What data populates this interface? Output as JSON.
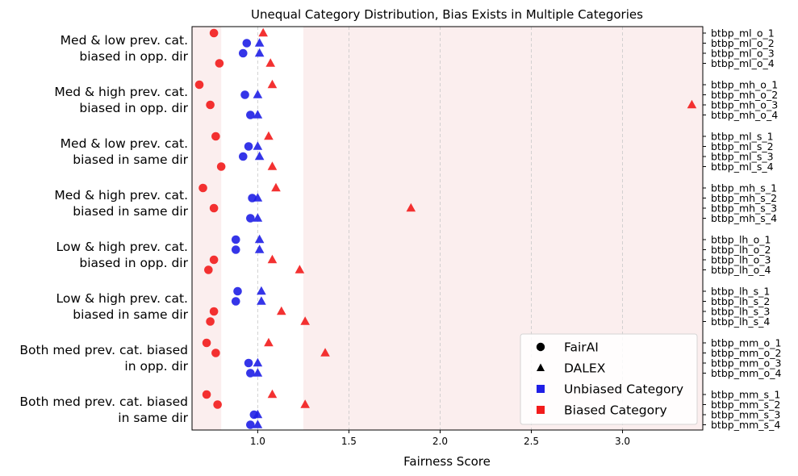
{
  "chart_data": {
    "type": "scatter",
    "title": "Unequal Category Distribution, Bias Exists in Multiple Categories",
    "xlabel": "Fairness Score",
    "xlim": [
      0.64,
      3.44
    ],
    "xticks": [
      "1.0",
      "1.5",
      "2.0",
      "2.5",
      "3.0"
    ],
    "xtick_values": [
      1.0,
      1.5,
      2.0,
      2.5,
      3.0
    ],
    "grid": "vertical dashed at x ticks",
    "shaded_regions": [
      {
        "from": 0.64,
        "to": 0.8,
        "color": "#fbeeee"
      },
      {
        "from": 1.25,
        "to": 3.44,
        "color": "#fbeeee"
      }
    ],
    "colors": {
      "unbiased": "#1f1fe6",
      "biased": "#f21b1b"
    },
    "groups": [
      {
        "label": [
          "Med & low prev. cat.",
          "biased in opp. dir"
        ],
        "categories": [
          "btbp_ml_o_1",
          "btbp_ml_o_2",
          "btbp_ml_o_3",
          "btbp_ml_o_4"
        ],
        "fairai": [
          0.76,
          0.94,
          0.92,
          0.79
        ],
        "dalex": [
          1.03,
          1.01,
          1.01,
          1.07
        ],
        "biased": [
          true,
          false,
          false,
          true
        ]
      },
      {
        "label": [
          "Med & high prev. cat.",
          "biased in opp. dir"
        ],
        "categories": [
          "btbp_mh_o_1",
          "btbp_mh_o_2",
          "btbp_mh_o_3",
          "btbp_mh_o_4"
        ],
        "fairai": [
          0.68,
          0.93,
          0.74,
          0.96
        ],
        "dalex": [
          1.08,
          1.0,
          3.38,
          1.0
        ],
        "biased": [
          true,
          false,
          true,
          false
        ]
      },
      {
        "label": [
          "Med & low prev. cat.",
          "biased in same dir"
        ],
        "categories": [
          "btbp_ml_s_1",
          "btbp_ml_s_2",
          "btbp_ml_s_3",
          "btbp_ml_s_4"
        ],
        "fairai": [
          0.77,
          0.95,
          0.92,
          0.8
        ],
        "dalex": [
          1.06,
          1.0,
          1.01,
          1.08
        ],
        "biased": [
          true,
          false,
          false,
          true
        ]
      },
      {
        "label": [
          "Med & high prev. cat.",
          "biased in same dir"
        ],
        "categories": [
          "btbp_mh_s_1",
          "btbp_mh_s_2",
          "btbp_mh_s_3",
          "btbp_mh_s_4"
        ],
        "fairai": [
          0.7,
          0.97,
          0.76,
          0.96
        ],
        "dalex": [
          1.1,
          1.0,
          1.84,
          1.0
        ],
        "biased": [
          true,
          false,
          true,
          false
        ]
      },
      {
        "label": [
          "Low & high prev. cat.",
          "biased in opp. dir"
        ],
        "categories": [
          "btbp_lh_o_1",
          "btbp_lh_o_2",
          "btbp_lh_o_3",
          "btbp_lh_o_4"
        ],
        "fairai": [
          0.88,
          0.88,
          0.76,
          0.73
        ],
        "dalex": [
          1.01,
          1.01,
          1.08,
          1.23
        ],
        "biased": [
          false,
          false,
          true,
          true
        ]
      },
      {
        "label": [
          "Low & high prev. cat.",
          "biased in same dir"
        ],
        "categories": [
          "btbp_lh_s_1",
          "btbp_lh_s_2",
          "btbp_lh_s_3",
          "btbp_lh_s_4"
        ],
        "fairai": [
          0.89,
          0.88,
          0.76,
          0.74
        ],
        "dalex": [
          1.02,
          1.02,
          1.13,
          1.26
        ],
        "biased": [
          false,
          false,
          true,
          true
        ]
      },
      {
        "label": [
          "Both med prev. cat. biased",
          "in opp. dir"
        ],
        "categories": [
          "btbp_mm_o_1",
          "btbp_mm_o_2",
          "btbp_mm_o_3",
          "btbp_mm_o_4"
        ],
        "fairai": [
          0.72,
          0.77,
          0.95,
          0.96
        ],
        "dalex": [
          1.06,
          1.37,
          1.0,
          1.0
        ],
        "biased": [
          true,
          true,
          false,
          false
        ]
      },
      {
        "label": [
          "Both med prev. cat. biased",
          "in same dir"
        ],
        "categories": [
          "btbp_mm_s_1",
          "btbp_mm_s_2",
          "btbp_mm_s_3",
          "btbp_mm_s_4"
        ],
        "fairai": [
          0.72,
          0.78,
          0.98,
          0.96
        ],
        "dalex": [
          1.08,
          1.26,
          1.0,
          1.0
        ],
        "biased": [
          true,
          true,
          false,
          false
        ]
      }
    ],
    "legend": {
      "position": "lower-right",
      "entries": [
        {
          "label": "FairAI",
          "marker": "circle",
          "color": "#000000"
        },
        {
          "label": "DALEX",
          "marker": "triangle",
          "color": "#000000"
        },
        {
          "label": "Unbiased Category",
          "marker": "square",
          "color": "#1f1fe6"
        },
        {
          "label": "Biased Category",
          "marker": "square",
          "color": "#f21b1b"
        }
      ]
    }
  }
}
